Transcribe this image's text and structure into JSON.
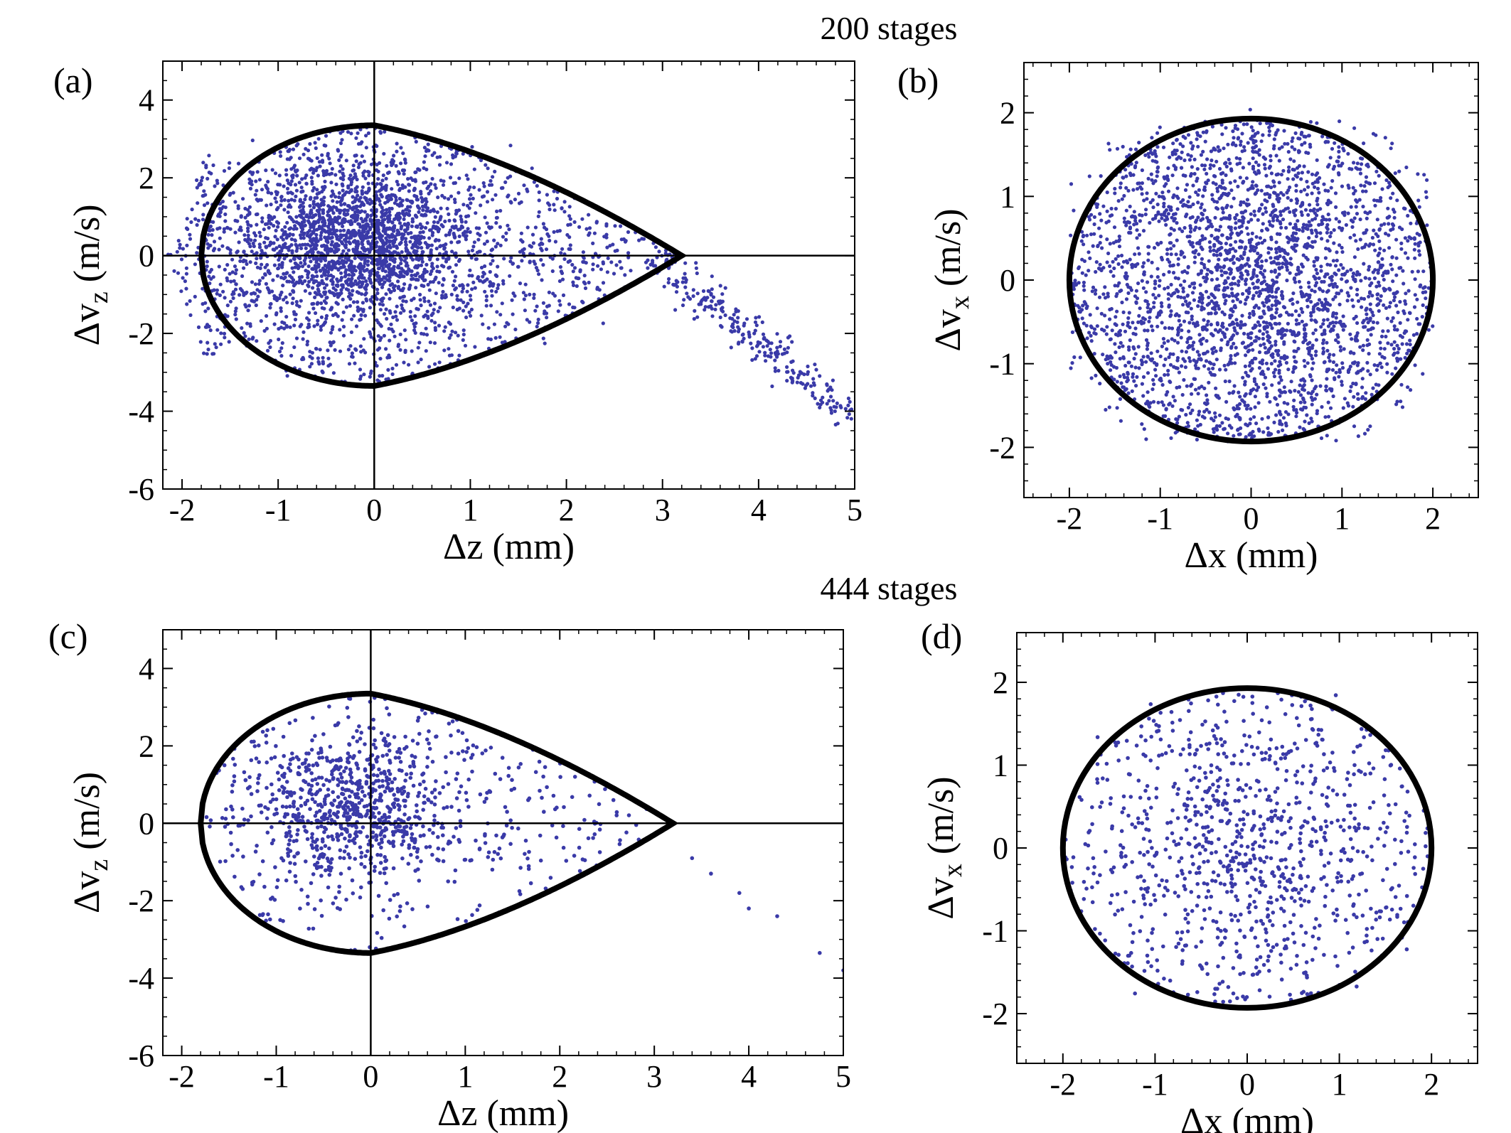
{
  "figure": {
    "rows": [
      {
        "label": "200 stages"
      },
      {
        "label": "444 stages"
      }
    ],
    "ellipsis": "…",
    "colors": {
      "points": "#3a3aa8",
      "separatrix": "#000000",
      "axes": "#000000",
      "background": "#ffffff"
    }
  },
  "chart_data": [
    {
      "id": "a",
      "panel_label": "(a)",
      "type": "scatter",
      "title": "200 stages",
      "xlabel": "Δz (mm)",
      "ylabel": "Δv_z (m/s)",
      "xlim": [
        -2.2,
        5
      ],
      "ylim": [
        -6,
        5.0
      ],
      "xticks": [
        -2,
        -1,
        0,
        1,
        2,
        3,
        4,
        5
      ],
      "yticks": [
        -6,
        -4,
        -2,
        0,
        2,
        4
      ],
      "zero_lines": true,
      "boundary": {
        "type": "teardrop",
        "z_left": -1.8,
        "z_right": 3.2,
        "v_max": 3.35
      },
      "cloud": {
        "n": 3000,
        "seed": 11,
        "density": "core centered near (-0.2, 0.4), filling the separatrix, with a tail extending along the lower right to (5, -4.5)",
        "core_center": [
          -0.2,
          0.4
        ],
        "tail": {
          "from": [
            3.0,
            -0.2
          ],
          "to": [
            5.1,
            -4.4
          ]
        }
      }
    },
    {
      "id": "b",
      "panel_label": "(b)",
      "type": "scatter",
      "xlabel": "Δx (mm)",
      "ylabel": "Δv_x (m/s)",
      "xlim": [
        -2.5,
        2.5
      ],
      "ylim": [
        -2.6,
        2.6
      ],
      "xticks": [
        -2,
        -1,
        0,
        1,
        2
      ],
      "yticks": [
        -2,
        -1,
        0,
        1,
        2
      ],
      "zero_lines": false,
      "boundary": {
        "type": "ellipse",
        "cx": 0,
        "cy": 0,
        "rx": 2.0,
        "ry": 1.93
      },
      "cloud": {
        "n": 3000,
        "seed": 23,
        "density": "uniform fill of ellipse, slight overflow at top and bottom"
      }
    },
    {
      "id": "c",
      "panel_label": "(c)",
      "type": "scatter",
      "title": "444 stages",
      "xlabel": "Δz (mm)",
      "ylabel": "Δv_z (m/s)",
      "xlim": [
        -2.2,
        5
      ],
      "ylim": [
        -6,
        5.0
      ],
      "xticks": [
        -2,
        -1,
        0,
        1,
        2,
        3,
        4,
        5
      ],
      "yticks": [
        -6,
        -4,
        -2,
        0,
        2,
        4
      ],
      "zero_lines": true,
      "boundary": {
        "type": "teardrop",
        "z_left": -1.8,
        "z_right": 3.2,
        "v_max": 3.35
      },
      "cloud": {
        "n": 1100,
        "seed": 37,
        "density": "dense core near (-0.2, 0.5), sparse elsewhere inside separatrix, a few points along the tail",
        "core_center": [
          -0.2,
          0.5
        ],
        "tail_points": [
          [
            3.4,
            -0.9
          ],
          [
            3.6,
            -1.3
          ],
          [
            3.9,
            -1.8
          ],
          [
            4.0,
            -2.2
          ],
          [
            4.3,
            -2.4
          ],
          [
            4.75,
            -3.35
          ],
          [
            5.0,
            -3.8
          ]
        ]
      }
    },
    {
      "id": "d",
      "panel_label": "(d)",
      "type": "scatter",
      "xlabel": "Δx (mm)",
      "ylabel": "Δv_x (m/s)",
      "xlim": [
        -2.5,
        2.5
      ],
      "ylim": [
        -2.6,
        2.6
      ],
      "xticks": [
        -2,
        -1,
        0,
        1,
        2
      ],
      "yticks": [
        -2,
        -1,
        0,
        1,
        2
      ],
      "zero_lines": false,
      "boundary": {
        "type": "ellipse",
        "cx": 0,
        "cy": 0,
        "rx": 2.0,
        "ry": 1.93
      },
      "cloud": {
        "n": 1000,
        "seed": 53,
        "density": "moderate uniform fill of ellipse, denser at center"
      }
    }
  ]
}
